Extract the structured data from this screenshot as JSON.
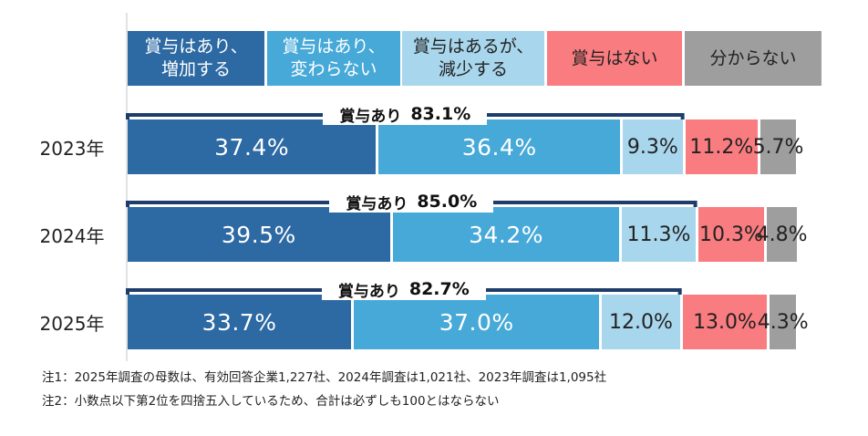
{
  "chart_data": {
    "type": "bar",
    "orientation": "horizontal",
    "stacked": true,
    "categories": [
      "2023年",
      "2024年",
      "2025年"
    ],
    "series": [
      {
        "name": "賞与はあり、\n増加する",
        "values": [
          37.4,
          39.5,
          33.7
        ],
        "labels": [
          "37.4%",
          "39.5%",
          "33.7%"
        ],
        "color": "#2d69a3",
        "text_color": "#ffffff"
      },
      {
        "name": "賞与はあり、\n変わらない",
        "values": [
          36.4,
          34.2,
          37.0
        ],
        "labels": [
          "36.4%",
          "34.2%",
          "37.0%"
        ],
        "color": "#47a9d8",
        "text_color": "#ffffff"
      },
      {
        "name": "賞与はあるが、\n減少する",
        "values": [
          9.3,
          11.3,
          12.0
        ],
        "labels": [
          "9.3%",
          "11.3%",
          "12.0%"
        ],
        "color": "#a8d6ec",
        "text_color": "#222222"
      },
      {
        "name": "賞与はない",
        "values": [
          11.2,
          10.3,
          13.0
        ],
        "labels": [
          "11.2%",
          "10.3%",
          "13.0%"
        ],
        "color": "#f97c80",
        "text_color": "#222222"
      },
      {
        "name": "分からない",
        "values": [
          5.7,
          4.8,
          4.3
        ],
        "labels": [
          "5.7%",
          "4.8%",
          "4.3%"
        ],
        "color": "#9e9e9e",
        "text_color": "#222222"
      }
    ],
    "totals": [
      {
        "label": "賞与あり",
        "value": 83.1,
        "value_text": "83.1%"
      },
      {
        "label": "賞与あり",
        "value": 85.0,
        "value_text": "85.0%"
      },
      {
        "label": "賞与あり",
        "value": 82.7,
        "value_text": "82.7%"
      }
    ],
    "xlim": [
      0,
      100
    ],
    "legend_position": "top",
    "grid": false
  },
  "notes": [
    "注1：2025年調査の母数は、有効回答企業1,227社、2024年調査は1,021社、2023年調査は1,095社",
    "注2：小数点以下第2位を四捨五入しているため、合計は必ずしも100とはならない"
  ],
  "colors": {
    "bracket": "#1e3d6b",
    "axis": "#d9d9d9"
  }
}
